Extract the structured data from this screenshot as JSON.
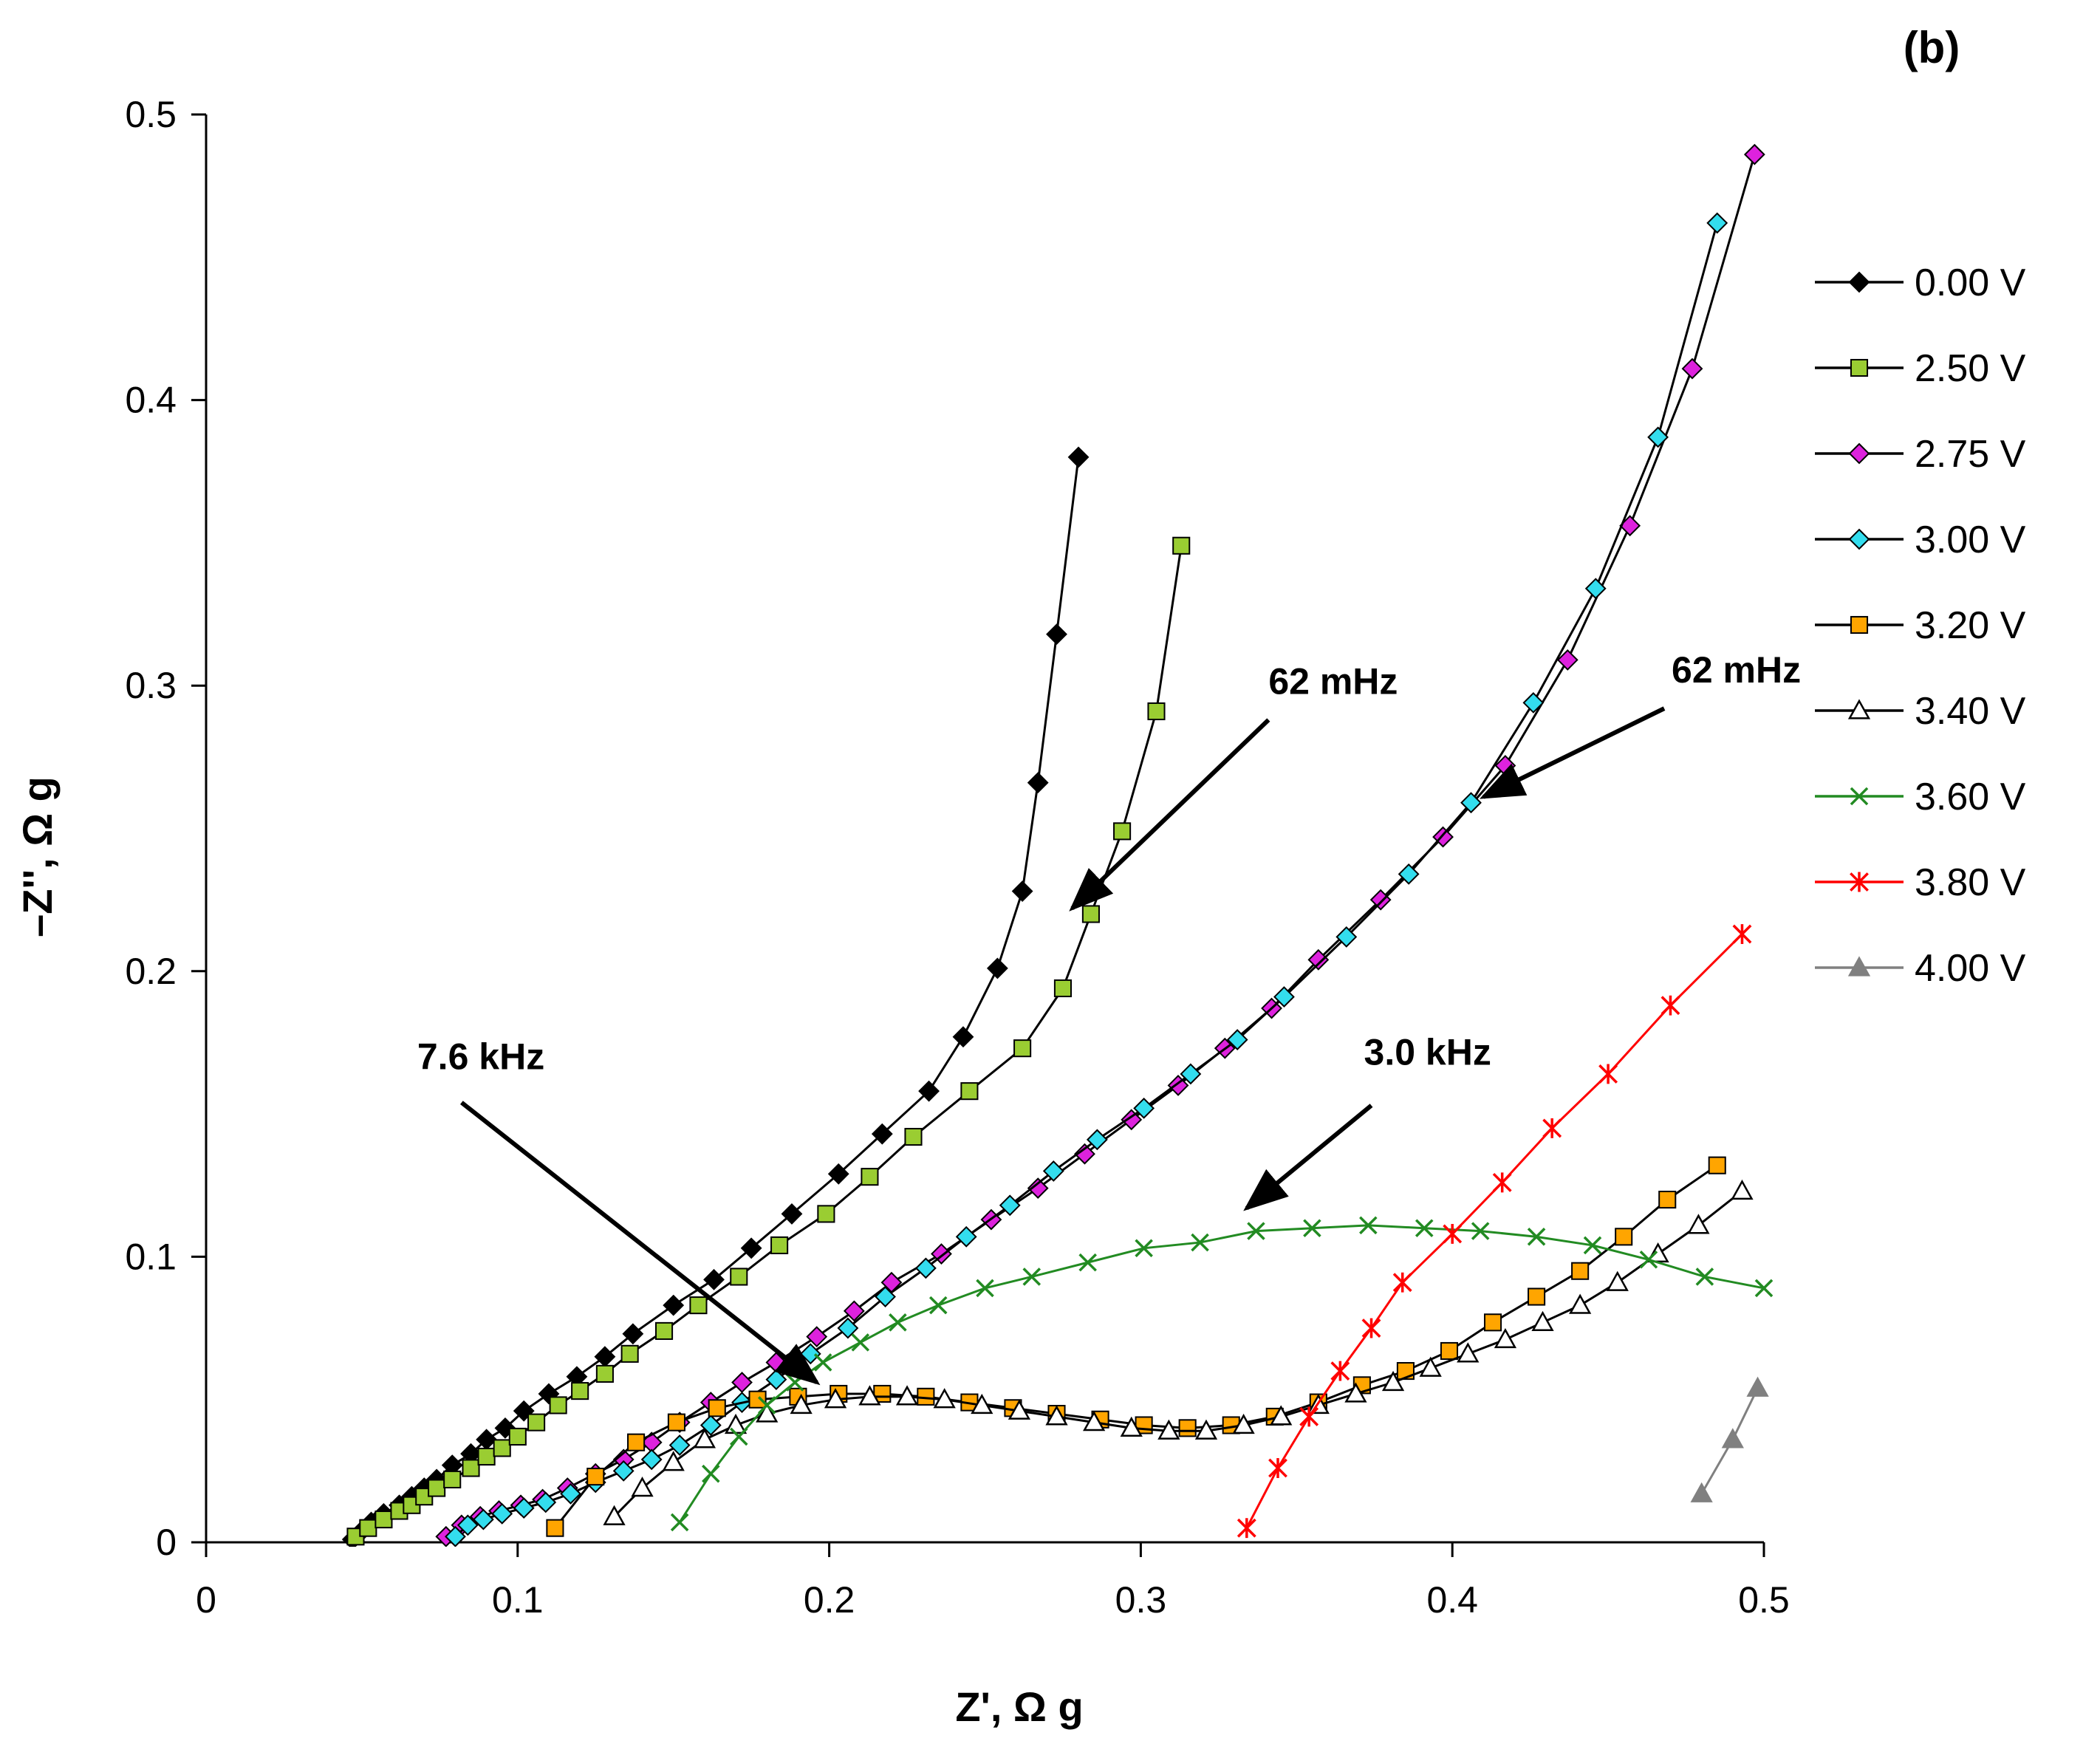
{
  "chart_data": {
    "type": "scatter",
    "panel_label": "(b)",
    "xlabel": "Z', Ω g",
    "ylabel": "–Z'', Ω g",
    "xlim": [
      0,
      0.5
    ],
    "ylim": [
      0,
      0.5
    ],
    "xticks": [
      0,
      0.1,
      0.2,
      0.3,
      0.4,
      0.5
    ],
    "yticks": [
      0,
      0.1,
      0.2,
      0.3,
      0.4,
      0.5
    ],
    "xtick_labels": [
      "0",
      "0.1",
      "0.2",
      "0.3",
      "0.4",
      "0.5"
    ],
    "ytick_labels": [
      "0",
      "0.1",
      "0.2",
      "0.3",
      "0.4",
      "0.5"
    ],
    "legend_position": "right",
    "annotations": [
      {
        "text": "62 mHz",
        "tail": [
          0.341,
          0.288
        ],
        "head": [
          0.278,
          0.222
        ]
      },
      {
        "text": "62 mHz",
        "tail": [
          0.468,
          0.292
        ],
        "head": [
          0.41,
          0.261
        ]
      },
      {
        "text": "7.6 kHz",
        "tail": [
          0.082,
          0.154
        ],
        "head": [
          0.196,
          0.056
        ]
      },
      {
        "text": "3.0 kHz",
        "tail": [
          0.374,
          0.153
        ],
        "head": [
          0.334,
          0.117
        ]
      }
    ],
    "series": [
      {
        "name": "0.00 V",
        "color": "#000000",
        "fill": "#000000",
        "line": "#000000",
        "marker": "diamond",
        "x": [
          0.047,
          0.05,
          0.053,
          0.057,
          0.062,
          0.066,
          0.07,
          0.074,
          0.079,
          0.085,
          0.09,
          0.096,
          0.102,
          0.11,
          0.119,
          0.128,
          0.137,
          0.15,
          0.163,
          0.175,
          0.188,
          0.203,
          0.217,
          0.232,
          0.243,
          0.254,
          0.262,
          0.267,
          0.273,
          0.28
        ],
        "y": [
          0.001,
          0.004,
          0.007,
          0.01,
          0.013,
          0.016,
          0.019,
          0.022,
          0.027,
          0.031,
          0.036,
          0.04,
          0.046,
          0.052,
          0.058,
          0.065,
          0.073,
          0.083,
          0.092,
          0.103,
          0.115,
          0.129,
          0.143,
          0.158,
          0.177,
          0.201,
          0.228,
          0.266,
          0.318,
          0.38
        ]
      },
      {
        "name": "2.50 V",
        "color": "#9ACD32",
        "fill": "#9ACD32",
        "line": "#000000",
        "marker": "square",
        "x": [
          0.048,
          0.052,
          0.057,
          0.062,
          0.066,
          0.07,
          0.074,
          0.079,
          0.085,
          0.09,
          0.095,
          0.1,
          0.106,
          0.113,
          0.12,
          0.128,
          0.136,
          0.147,
          0.158,
          0.171,
          0.184,
          0.199,
          0.213,
          0.227,
          0.245,
          0.262,
          0.275,
          0.284,
          0.294,
          0.305,
          0.313
        ],
        "y": [
          0.002,
          0.005,
          0.008,
          0.011,
          0.013,
          0.016,
          0.019,
          0.022,
          0.026,
          0.03,
          0.033,
          0.037,
          0.042,
          0.048,
          0.053,
          0.059,
          0.066,
          0.074,
          0.083,
          0.093,
          0.104,
          0.115,
          0.128,
          0.142,
          0.158,
          0.173,
          0.194,
          0.22,
          0.249,
          0.291,
          0.349
        ]
      },
      {
        "name": "2.75 V",
        "color": "#CC33CC",
        "fill": "#DD22DD",
        "line": "#000000",
        "marker": "diamond",
        "x": [
          0.077,
          0.082,
          0.088,
          0.094,
          0.101,
          0.108,
          0.116,
          0.125,
          0.134,
          0.143,
          0.152,
          0.162,
          0.172,
          0.183,
          0.196,
          0.208,
          0.22,
          0.236,
          0.252,
          0.267,
          0.282,
          0.297,
          0.312,
          0.327,
          0.342,
          0.357,
          0.377,
          0.397,
          0.417,
          0.437,
          0.457,
          0.477,
          0.497
        ],
        "y": [
          0.002,
          0.006,
          0.009,
          0.011,
          0.013,
          0.015,
          0.019,
          0.024,
          0.029,
          0.035,
          0.042,
          0.049,
          0.056,
          0.063,
          0.072,
          0.081,
          0.091,
          0.101,
          0.113,
          0.124,
          0.136,
          0.148,
          0.16,
          0.173,
          0.187,
          0.204,
          0.225,
          0.247,
          0.272,
          0.309,
          0.356,
          0.411,
          0.486
        ]
      },
      {
        "name": "3.00 V",
        "color": "#00CCCC",
        "fill": "#33DDEE",
        "line": "#000000",
        "marker": "diamond",
        "x": [
          0.08,
          0.084,
          0.089,
          0.095,
          0.102,
          0.109,
          0.117,
          0.125,
          0.134,
          0.143,
          0.152,
          0.162,
          0.172,
          0.183,
          0.194,
          0.206,
          0.218,
          0.231,
          0.244,
          0.258,
          0.272,
          0.286,
          0.301,
          0.316,
          0.331,
          0.346,
          0.366,
          0.386,
          0.406,
          0.426,
          0.446,
          0.466,
          0.485
        ],
        "y": [
          0.002,
          0.006,
          0.008,
          0.01,
          0.012,
          0.014,
          0.017,
          0.021,
          0.025,
          0.029,
          0.034,
          0.041,
          0.049,
          0.057,
          0.066,
          0.075,
          0.086,
          0.096,
          0.107,
          0.118,
          0.13,
          0.141,
          0.152,
          0.164,
          0.176,
          0.191,
          0.212,
          0.234,
          0.259,
          0.294,
          0.334,
          0.387,
          0.462
        ]
      },
      {
        "name": "3.20 V",
        "color": "#FFA500",
        "fill": "#FFA500",
        "line": "#000000",
        "marker": "square",
        "x": [
          0.112,
          0.125,
          0.138,
          0.151,
          0.164,
          0.177,
          0.19,
          0.203,
          0.217,
          0.231,
          0.245,
          0.259,
          0.273,
          0.287,
          0.301,
          0.315,
          0.329,
          0.343,
          0.357,
          0.371,
          0.385,
          0.399,
          0.413,
          0.427,
          0.441,
          0.455,
          0.469,
          0.485
        ],
        "y": [
          0.005,
          0.023,
          0.035,
          0.042,
          0.047,
          0.05,
          0.051,
          0.052,
          0.052,
          0.051,
          0.049,
          0.047,
          0.045,
          0.043,
          0.041,
          0.04,
          0.041,
          0.044,
          0.049,
          0.055,
          0.06,
          0.067,
          0.077,
          0.086,
          0.095,
          0.107,
          0.12,
          0.132
        ]
      },
      {
        "name": "3.40 V",
        "color": "#000000",
        "fill": "#FFFFFF",
        "line": "#000000",
        "marker": "triangle",
        "x": [
          0.131,
          0.14,
          0.15,
          0.16,
          0.17,
          0.18,
          0.191,
          0.202,
          0.213,
          0.225,
          0.237,
          0.249,
          0.261,
          0.273,
          0.285,
          0.297,
          0.309,
          0.321,
          0.333,
          0.345,
          0.357,
          0.369,
          0.381,
          0.393,
          0.405,
          0.417,
          0.429,
          0.441,
          0.453,
          0.466,
          0.479,
          0.493
        ],
        "y": [
          0.009,
          0.019,
          0.028,
          0.036,
          0.041,
          0.045,
          0.048,
          0.05,
          0.051,
          0.051,
          0.05,
          0.048,
          0.046,
          0.044,
          0.042,
          0.04,
          0.039,
          0.039,
          0.041,
          0.044,
          0.048,
          0.052,
          0.056,
          0.061,
          0.066,
          0.071,
          0.077,
          0.083,
          0.091,
          0.101,
          0.111,
          0.123
        ]
      },
      {
        "name": "3.60 V",
        "color": "#228B22",
        "fill": "#228B22",
        "line": "#228B22",
        "marker": "x",
        "x": [
          0.152,
          0.162,
          0.171,
          0.18,
          0.189,
          0.198,
          0.21,
          0.222,
          0.235,
          0.25,
          0.265,
          0.283,
          0.301,
          0.319,
          0.337,
          0.355,
          0.373,
          0.391,
          0.409,
          0.427,
          0.445,
          0.463,
          0.481,
          0.5
        ],
        "y": [
          0.007,
          0.024,
          0.037,
          0.048,
          0.056,
          0.063,
          0.07,
          0.077,
          0.083,
          0.089,
          0.093,
          0.098,
          0.103,
          0.105,
          0.109,
          0.11,
          0.111,
          0.11,
          0.109,
          0.107,
          0.104,
          0.099,
          0.093,
          0.089
        ]
      },
      {
        "name": "3.80 V",
        "color": "#FF0000",
        "fill": "#FF0000",
        "line": "#FF0000",
        "marker": "asterisk",
        "x": [
          0.334,
          0.344,
          0.354,
          0.364,
          0.374,
          0.384,
          0.4,
          0.416,
          0.432,
          0.45,
          0.47,
          0.493
        ],
        "y": [
          0.005,
          0.026,
          0.044,
          0.06,
          0.075,
          0.091,
          0.108,
          0.126,
          0.145,
          0.164,
          0.188,
          0.213
        ]
      },
      {
        "name": "4.00 V",
        "color": "#808080",
        "fill": "#808080",
        "line": "#808080",
        "marker": "triangle",
        "x": [
          0.48,
          0.49,
          0.498
        ],
        "y": [
          0.017,
          0.036,
          0.054
        ]
      }
    ]
  }
}
